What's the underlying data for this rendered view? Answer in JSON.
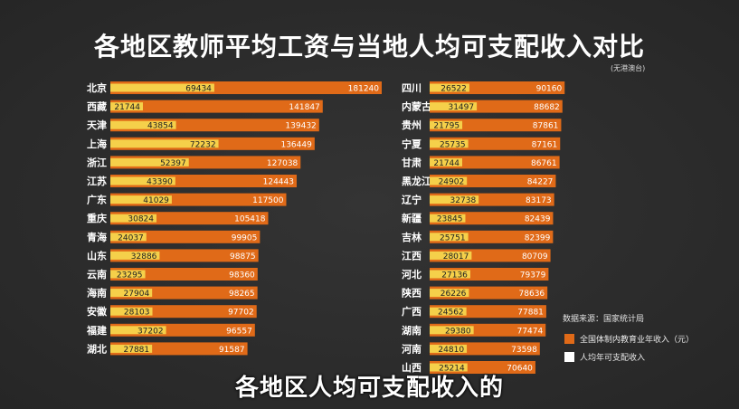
{
  "chart_data": {
    "type": "bar",
    "title": "各地区教师平均工资与当地人均可支配收入对比",
    "note": "(无港澳台)",
    "source": "数据来源：国家统计局",
    "subtitle": "各地区人均可支配收入的",
    "colors": {
      "teacher": "#e06a18",
      "income": "#f5d04a"
    },
    "series": [
      {
        "name": "全国体制内教育业年收入（元）",
        "key": "teacher"
      },
      {
        "name": "人均年可支配收入",
        "key": "income"
      }
    ],
    "groups": [
      {
        "categories": [
          "北京",
          "西藏",
          "天津",
          "上海",
          "浙江",
          "江苏",
          "广东",
          "重庆",
          "青海",
          "山东",
          "云南",
          "海南",
          "安徽",
          "福建",
          "湖北"
        ],
        "teacher": [
          181240,
          141847,
          139432,
          136449,
          127038,
          124443,
          117500,
          105418,
          99905,
          98875,
          98360,
          98265,
          97702,
          96557,
          91587
        ],
        "income": [
          69434,
          21744,
          43854,
          72232,
          52397,
          43390,
          41029,
          30824,
          24037,
          32886,
          23295,
          27904,
          28103,
          37202,
          27881
        ]
      },
      {
        "categories": [
          "四川",
          "内蒙古",
          "贵州",
          "宁夏",
          "甘肃",
          "黑龙江",
          "辽宁",
          "新疆",
          "吉林",
          "江西",
          "河北",
          "陕西",
          "广西",
          "湖南",
          "河南",
          "山西"
        ],
        "teacher": [
          90160,
          88682,
          87861,
          87161,
          86761,
          84227,
          83173,
          82439,
          82399,
          80709,
          79379,
          78636,
          77881,
          77474,
          73598,
          70640
        ],
        "income": [
          26522,
          31497,
          21795,
          25735,
          21744,
          24902,
          32738,
          23845,
          25751,
          28017,
          27136,
          26226,
          24562,
          29380,
          24810,
          25214
        ]
      }
    ]
  }
}
